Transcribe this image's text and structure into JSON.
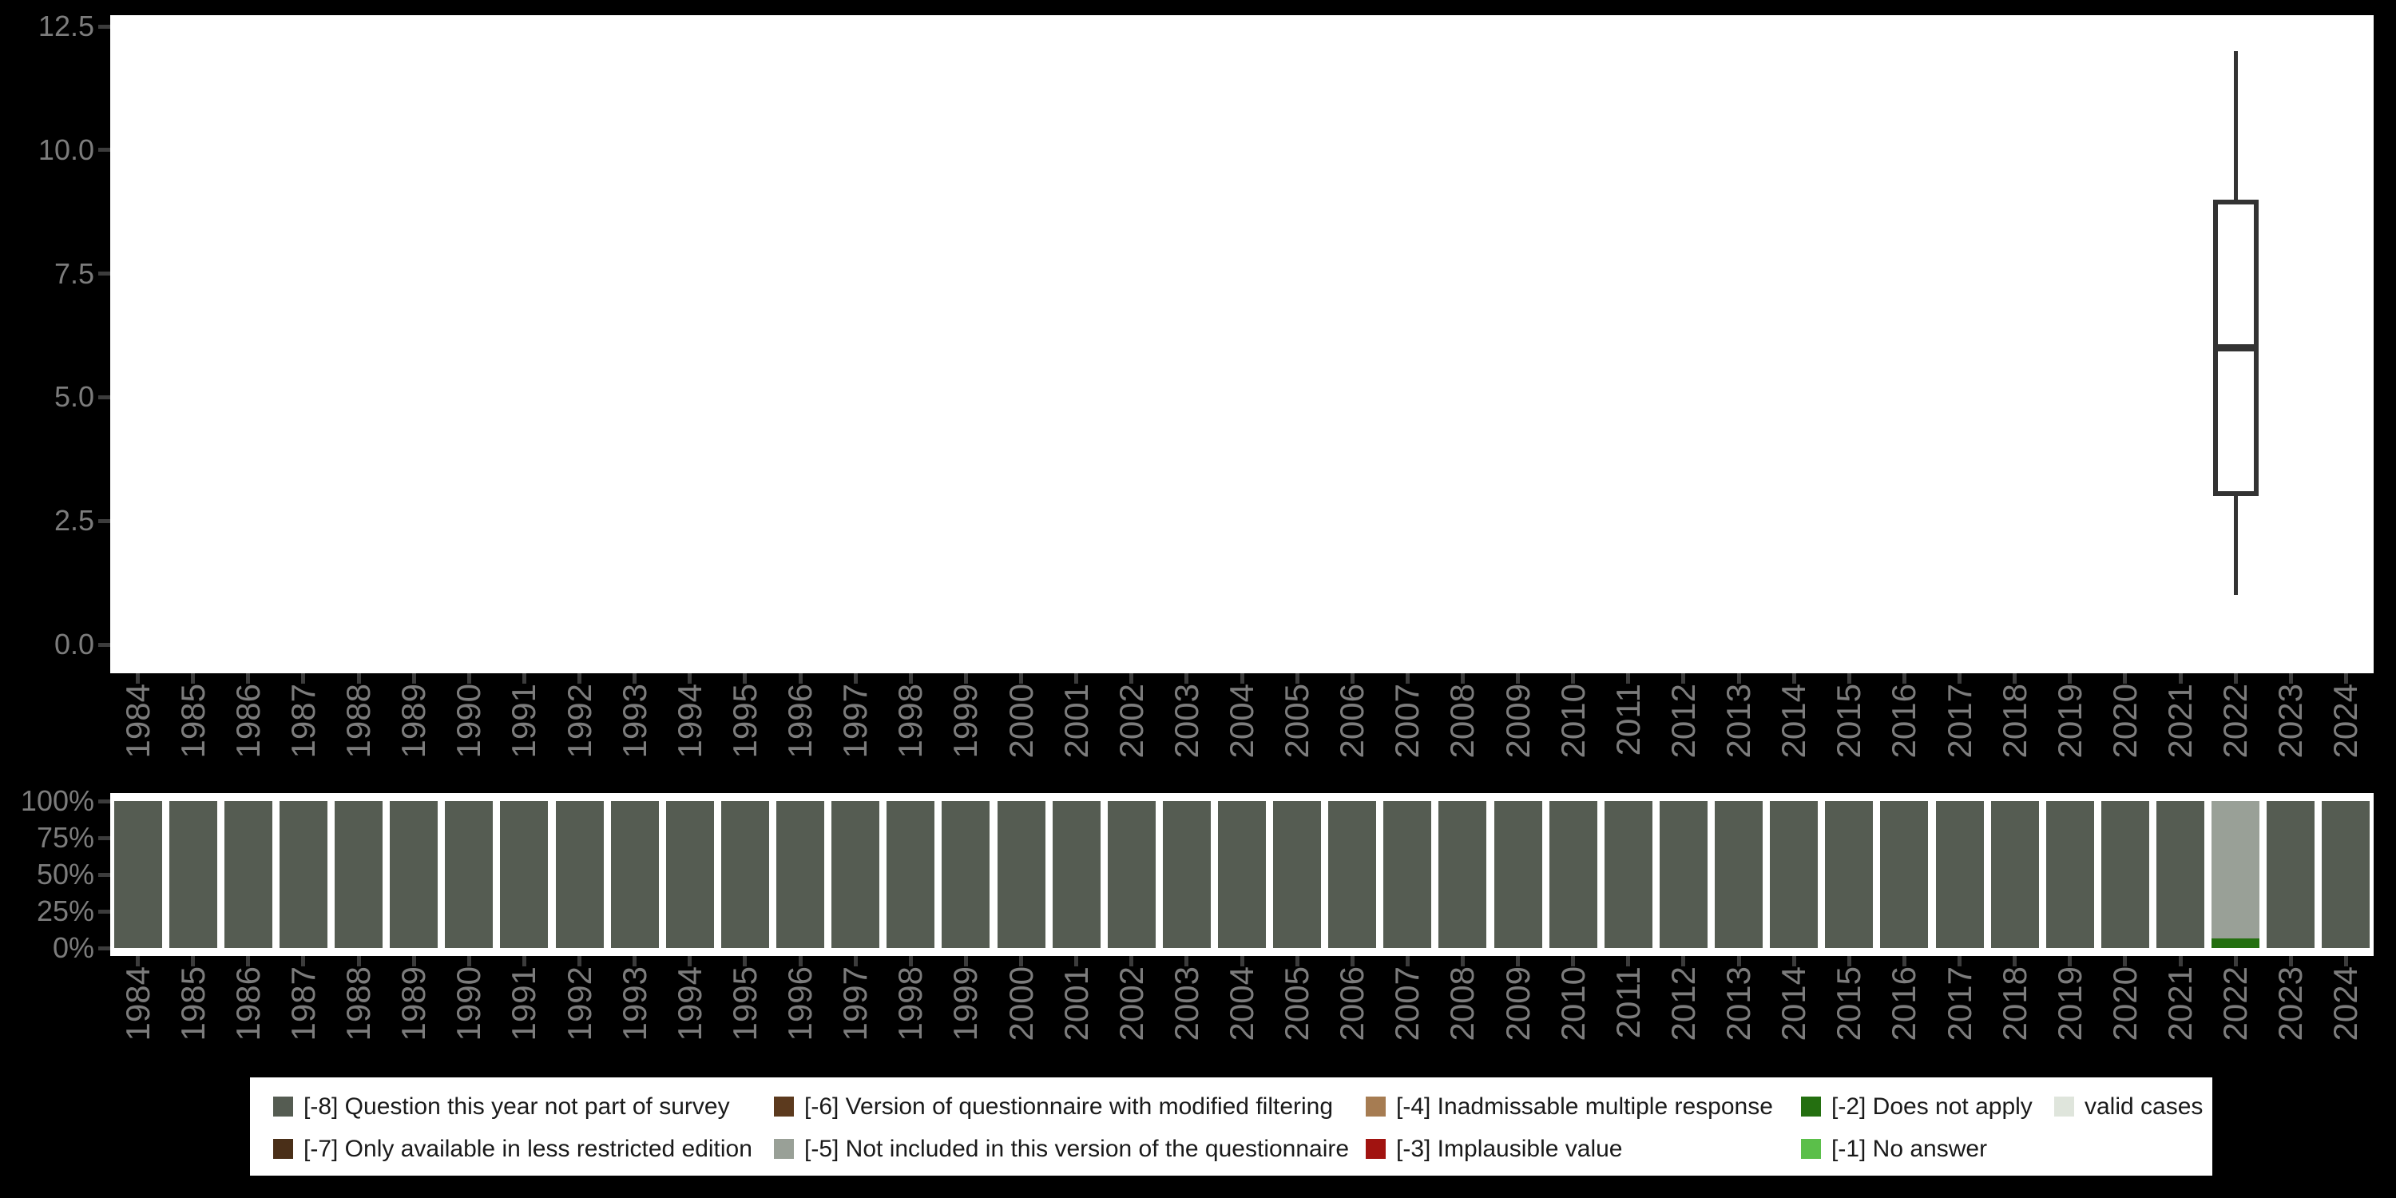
{
  "years": [
    "1984",
    "1985",
    "1986",
    "1987",
    "1988",
    "1989",
    "1990",
    "1991",
    "1992",
    "1993",
    "1994",
    "1995",
    "1996",
    "1997",
    "1998",
    "1999",
    "2000",
    "2001",
    "2002",
    "2003",
    "2004",
    "2005",
    "2006",
    "2007",
    "2008",
    "2009",
    "2010",
    "2011",
    "2012",
    "2013",
    "2014",
    "2015",
    "2016",
    "2017",
    "2018",
    "2019",
    "2020",
    "2021",
    "2022",
    "2023",
    "2024"
  ],
  "top_chart": {
    "y_ticks": [
      {
        "label": "0.0",
        "value": 0.0
      },
      {
        "label": "2.5",
        "value": 2.5
      },
      {
        "label": "5.0",
        "value": 5.0
      },
      {
        "label": "7.5",
        "value": 7.5
      },
      {
        "label": "10.0",
        "value": 10.0
      },
      {
        "label": "12.5",
        "value": 12.5
      }
    ]
  },
  "bottom_chart": {
    "y_ticks": [
      {
        "label": "0%",
        "value": 0
      },
      {
        "label": "25%",
        "value": 25
      },
      {
        "label": "50%",
        "value": 50
      },
      {
        "label": "75%",
        "value": 75
      },
      {
        "label": "100%",
        "value": 100
      }
    ]
  },
  "legend": {
    "items": [
      {
        "key": "[-8]",
        "label": "[-8] Question this year not part of survey",
        "color": "#555C52"
      },
      {
        "key": "[-7]",
        "label": "[-7] Only available in less restricted edition",
        "color": "#4A2F18"
      },
      {
        "key": "[-6]",
        "label": "[-6] Version of questionnaire with modified filtering",
        "color": "#5C3A1E"
      },
      {
        "key": "[-5]",
        "label": "[-5] Not included in this version of the questionnaire",
        "color": "#99A097"
      },
      {
        "key": "[-4]",
        "label": "[-4] Inadmissable multiple response",
        "color": "#A67C52"
      },
      {
        "key": "[-3]",
        "label": "[-3] Implausible value",
        "color": "#A11310"
      },
      {
        "key": "[-2]",
        "label": "[-2] Does not apply",
        "color": "#246F10"
      },
      {
        "key": "[-1]",
        "label": "[-1] No answer",
        "color": "#5BBF4A"
      },
      {
        "key": "valid",
        "label": "valid cases",
        "color": "#DFE5DC"
      }
    ]
  },
  "chart_data": [
    {
      "type": "boxplot",
      "title": "",
      "xlabel": "",
      "ylabel": "",
      "categories": [
        "1984",
        "1985",
        "1986",
        "1987",
        "1988",
        "1989",
        "1990",
        "1991",
        "1992",
        "1993",
        "1994",
        "1995",
        "1996",
        "1997",
        "1998",
        "1999",
        "2000",
        "2001",
        "2002",
        "2003",
        "2004",
        "2005",
        "2006",
        "2007",
        "2008",
        "2009",
        "2010",
        "2011",
        "2012",
        "2013",
        "2014",
        "2015",
        "2016",
        "2017",
        "2018",
        "2019",
        "2020",
        "2021",
        "2022",
        "2023",
        "2024"
      ],
      "y_ticks": [
        0.0,
        2.5,
        5.0,
        7.5,
        10.0,
        12.5
      ],
      "ylim": [
        -0.6,
        13.3
      ],
      "grid": false,
      "boxes": [
        {
          "category": "2022",
          "min": 1,
          "q1": 3,
          "median": 6,
          "q3": 9,
          "max": 12
        }
      ]
    },
    {
      "type": "bar",
      "stacked": true,
      "percent": true,
      "title": "",
      "xlabel": "",
      "ylabel": "",
      "categories": [
        "1984",
        "1985",
        "1986",
        "1987",
        "1988",
        "1989",
        "1990",
        "1991",
        "1992",
        "1993",
        "1994",
        "1995",
        "1996",
        "1997",
        "1998",
        "1999",
        "2000",
        "2001",
        "2002",
        "2003",
        "2004",
        "2005",
        "2006",
        "2007",
        "2008",
        "2009",
        "2010",
        "2011",
        "2012",
        "2013",
        "2014",
        "2015",
        "2016",
        "2017",
        "2018",
        "2019",
        "2020",
        "2021",
        "2022",
        "2023",
        "2024"
      ],
      "y_ticks": [
        "0%",
        "25%",
        "50%",
        "75%",
        "100%"
      ],
      "legend_position": "bottom",
      "default_segments": [
        {
          "legend_key": "[-8]",
          "percent": 100
        }
      ],
      "exception_bars": [
        {
          "category": "2022",
          "segments": [
            {
              "legend_key": "[-5]",
              "percent": 93.6
            },
            {
              "legend_key": "[-2]",
              "percent": 6.4
            }
          ]
        }
      ]
    }
  ]
}
